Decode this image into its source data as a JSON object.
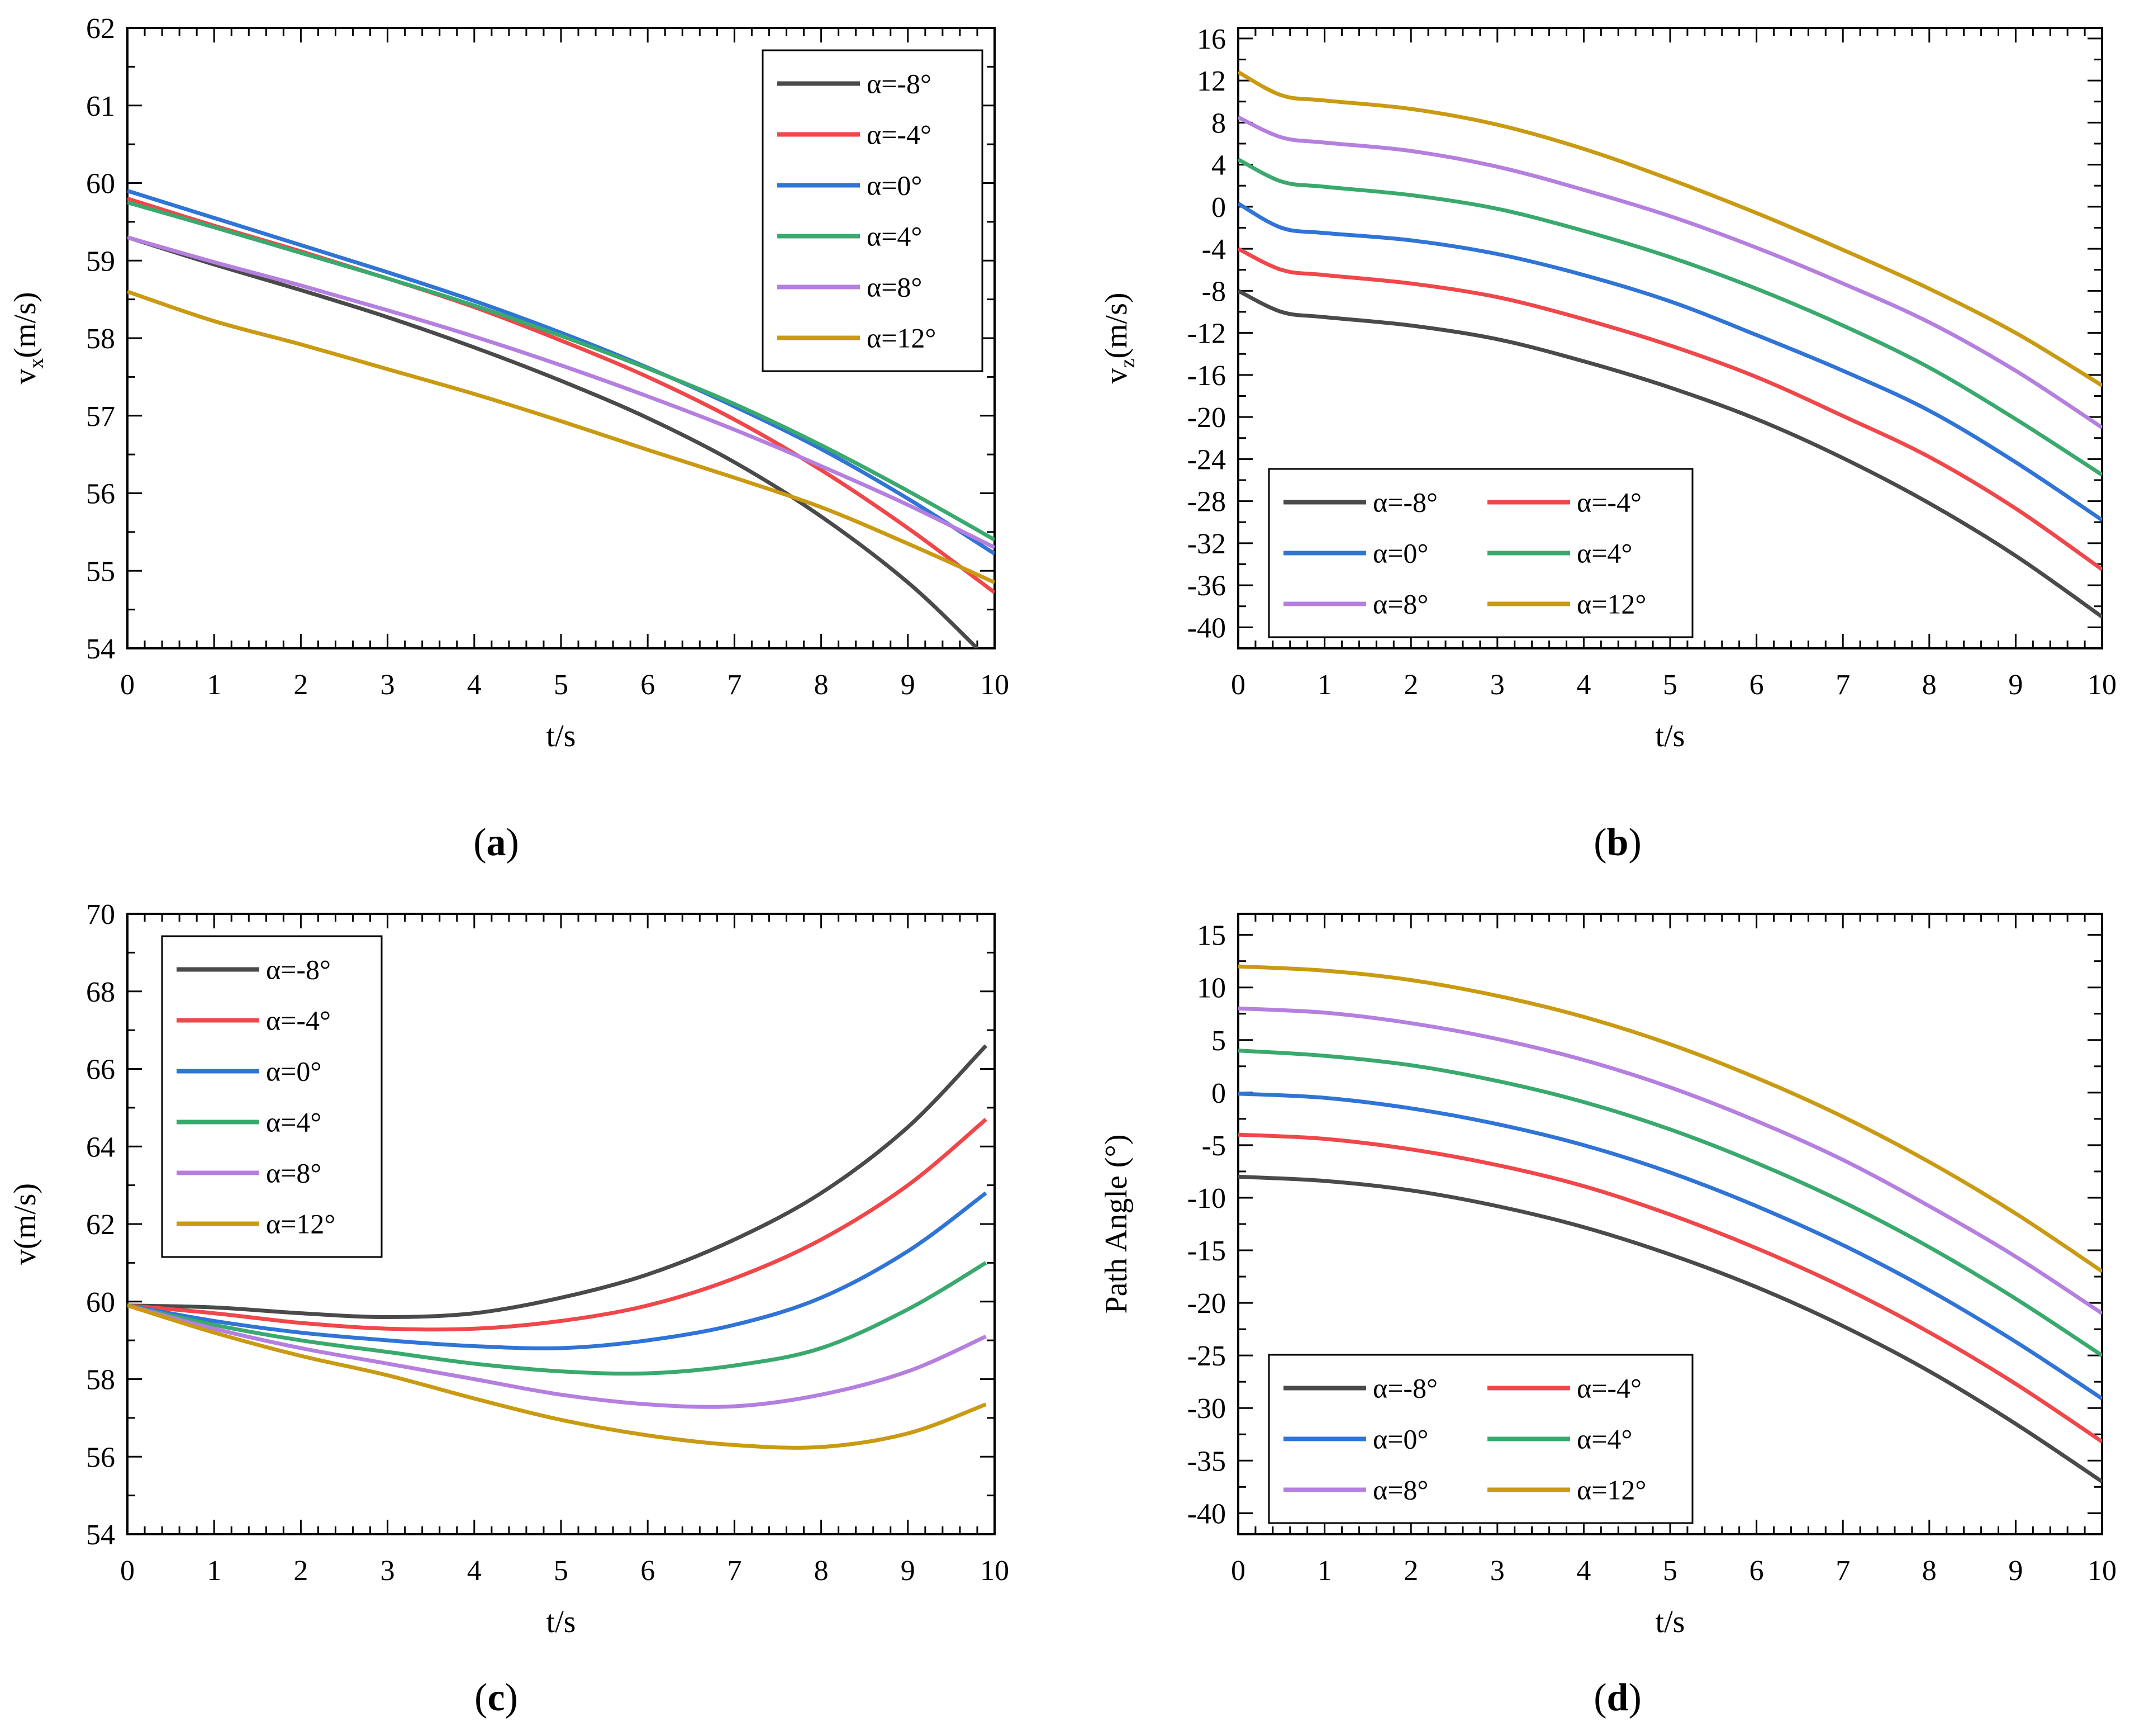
{
  "colors": {
    "a_m8": "#4a4a4a",
    "a_m4": "#f0474a",
    "a_0": "#2f74d6",
    "a_4": "#3aa96e",
    "a_8": "#b57fe0",
    "a_12": "#c99a12"
  },
  "chart_data": [
    {
      "type": "line",
      "caption": "a",
      "xlabel": "t/s",
      "ylabel_main": "v",
      "ylabel_sub": "x",
      "ylabel_rest": "(m/s)",
      "xlim": [
        0,
        10
      ],
      "ylim": [
        54,
        62
      ],
      "xticks": [
        0,
        1,
        2,
        3,
        4,
        5,
        6,
        7,
        8,
        9,
        10
      ],
      "yticks": [
        54,
        55,
        56,
        57,
        58,
        59,
        60,
        61,
        62
      ],
      "legend": {
        "placement": "top-right",
        "columns": 1
      },
      "series": [
        {
          "name": "α=-8°",
          "color": "a_m8",
          "x": [
            0,
            1,
            2,
            3,
            4,
            5,
            6,
            7,
            8,
            9,
            9.8
          ],
          "y": [
            59.3,
            58.95,
            58.62,
            58.27,
            57.88,
            57.45,
            56.97,
            56.4,
            55.7,
            54.85,
            54.0
          ]
        },
        {
          "name": "α=-4°",
          "color": "a_m4",
          "x": [
            0,
            1,
            2,
            3,
            4,
            5,
            6,
            7,
            8,
            9,
            10
          ],
          "y": [
            59.8,
            59.45,
            59.12,
            58.77,
            58.4,
            57.97,
            57.5,
            56.95,
            56.3,
            55.55,
            54.72
          ]
        },
        {
          "name": "α=0°",
          "color": "a_0",
          "x": [
            0,
            1,
            2,
            3,
            4,
            5,
            6,
            7,
            8,
            9,
            10
          ],
          "y": [
            59.9,
            59.55,
            59.2,
            58.85,
            58.48,
            58.07,
            57.62,
            57.12,
            56.57,
            55.93,
            55.22
          ]
        },
        {
          "name": "α=4°",
          "color": "a_4",
          "x": [
            0,
            1,
            2,
            3,
            4,
            5,
            6,
            7,
            8,
            9,
            10
          ],
          "y": [
            59.75,
            59.43,
            59.1,
            58.77,
            58.42,
            58.03,
            57.61,
            57.15,
            56.62,
            56.03,
            55.4
          ]
        },
        {
          "name": "α=8°",
          "color": "a_8",
          "x": [
            0,
            1,
            2,
            3,
            4,
            5,
            6,
            7,
            8,
            9,
            10
          ],
          "y": [
            59.3,
            58.98,
            58.68,
            58.36,
            58.02,
            57.65,
            57.25,
            56.82,
            56.35,
            55.85,
            55.3
          ]
        },
        {
          "name": "α=12°",
          "color": "a_12",
          "x": [
            0,
            1,
            2,
            3,
            4,
            5,
            6,
            7,
            8,
            9,
            10
          ],
          "y": [
            58.6,
            58.22,
            57.92,
            57.6,
            57.28,
            56.93,
            56.56,
            56.2,
            55.82,
            55.35,
            54.85
          ]
        }
      ]
    },
    {
      "type": "line",
      "caption": "b",
      "xlabel": "t/s",
      "ylabel_main": "v",
      "ylabel_sub": "z",
      "ylabel_rest": "(m/s)",
      "xlim": [
        0,
        10
      ],
      "ylim": [
        -42,
        17
      ],
      "xticks": [
        0,
        1,
        2,
        3,
        4,
        5,
        6,
        7,
        8,
        9,
        10
      ],
      "yticks": [
        -40,
        -36,
        -32,
        -28,
        -24,
        -20,
        -16,
        -12,
        -8,
        -4,
        0,
        4,
        8,
        12,
        16
      ],
      "legend": {
        "placement": "bottom-left",
        "columns": 2
      },
      "series": [
        {
          "name": "α=-8°",
          "color": "a_m8",
          "x": [
            0,
            0.5,
            1,
            2,
            3,
            4,
            5,
            6,
            7,
            8,
            9,
            10
          ],
          "y": [
            -8,
            -10,
            -10.5,
            -11.3,
            -12.6,
            -14.7,
            -17.2,
            -20.2,
            -23.9,
            -28.2,
            -33.2,
            -39
          ]
        },
        {
          "name": "α=-4°",
          "color": "a_m4",
          "x": [
            0,
            0.5,
            1,
            2,
            3,
            4,
            5,
            6,
            7,
            8,
            9,
            10
          ],
          "y": [
            -4,
            -6,
            -6.5,
            -7.3,
            -8.6,
            -10.7,
            -13.2,
            -16.2,
            -19.9,
            -23.8,
            -28.7,
            -34.5
          ]
        },
        {
          "name": "α=0°",
          "color": "a_0",
          "x": [
            0,
            0.5,
            1,
            2,
            3,
            4,
            5,
            6,
            7,
            8,
            9,
            10
          ],
          "y": [
            0.3,
            -2,
            -2.5,
            -3.2,
            -4.5,
            -6.5,
            -9,
            -12.2,
            -15.6,
            -19.4,
            -24.3,
            -29.8
          ]
        },
        {
          "name": "α=4°",
          "color": "a_4",
          "x": [
            0,
            0.5,
            1,
            2,
            3,
            4,
            5,
            6,
            7,
            8,
            9,
            10
          ],
          "y": [
            4.5,
            2.4,
            1.9,
            1.1,
            -0.2,
            -2.3,
            -4.8,
            -7.8,
            -11.3,
            -15.3,
            -20.2,
            -25.5
          ]
        },
        {
          "name": "α=8°",
          "color": "a_8",
          "x": [
            0,
            0.5,
            1,
            2,
            3,
            4,
            5,
            6,
            7,
            8,
            9,
            10
          ],
          "y": [
            8.5,
            6.6,
            6.1,
            5.3,
            3.8,
            1.6,
            -0.9,
            -3.9,
            -7.3,
            -11,
            -15.6,
            -21
          ]
        },
        {
          "name": "α=12°",
          "color": "a_12",
          "x": [
            0,
            0.5,
            1,
            2,
            3,
            4,
            5,
            6,
            7,
            8,
            9,
            10
          ],
          "y": [
            12.8,
            10.6,
            10.1,
            9.3,
            7.8,
            5.5,
            2.6,
            -0.6,
            -4.1,
            -7.8,
            -12,
            -17
          ]
        }
      ]
    },
    {
      "type": "line",
      "caption": "c",
      "xlabel": "t/s",
      "ylabel_main": "v(m/s)",
      "ylabel_sub": "",
      "ylabel_rest": "",
      "xlim": [
        0,
        10
      ],
      "ylim": [
        54,
        70
      ],
      "xticks": [
        0,
        1,
        2,
        3,
        4,
        5,
        6,
        7,
        8,
        9,
        10
      ],
      "yticks": [
        54,
        56,
        58,
        60,
        62,
        64,
        66,
        68,
        70
      ],
      "legend": {
        "placement": "top-left",
        "columns": 1
      },
      "series": [
        {
          "name": "α=-8°",
          "color": "a_m8",
          "x": [
            0,
            1,
            2,
            3,
            4,
            5,
            6,
            7,
            8,
            9,
            9.9
          ],
          "y": [
            59.9,
            59.85,
            59.7,
            59.6,
            59.7,
            60.1,
            60.7,
            61.6,
            62.8,
            64.5,
            66.6
          ]
        },
        {
          "name": "α=-4°",
          "color": "a_m4",
          "x": [
            0,
            1,
            2,
            3,
            4,
            5,
            6,
            7,
            8,
            9,
            9.9
          ],
          "y": [
            59.9,
            59.7,
            59.45,
            59.3,
            59.3,
            59.5,
            59.9,
            60.6,
            61.6,
            63,
            64.7
          ]
        },
        {
          "name": "α=0°",
          "color": "a_0",
          "x": [
            0,
            1,
            2,
            3,
            4,
            5,
            6,
            7,
            8,
            9,
            9.9
          ],
          "y": [
            59.9,
            59.5,
            59.2,
            59,
            58.85,
            58.8,
            59,
            59.4,
            60.1,
            61.3,
            62.8
          ]
        },
        {
          "name": "α=4°",
          "color": "a_4",
          "x": [
            0,
            1,
            2,
            3,
            4,
            5,
            6,
            7,
            8,
            9,
            9.9
          ],
          "y": [
            59.9,
            59.4,
            59,
            58.7,
            58.4,
            58.2,
            58.15,
            58.35,
            58.8,
            59.8,
            61
          ]
        },
        {
          "name": "α=8°",
          "color": "a_8",
          "x": [
            0,
            1,
            2,
            3,
            4,
            5,
            6,
            7,
            8,
            9,
            9.9
          ],
          "y": [
            59.9,
            59.3,
            58.8,
            58.4,
            58,
            57.6,
            57.35,
            57.3,
            57.6,
            58.2,
            59.1
          ]
        },
        {
          "name": "α=12°",
          "color": "a_12",
          "x": [
            0,
            1,
            2,
            3,
            4,
            5,
            6,
            7,
            8,
            9,
            9.9
          ],
          "y": [
            59.9,
            59.2,
            58.6,
            58.1,
            57.5,
            56.95,
            56.55,
            56.3,
            56.25,
            56.6,
            57.35
          ]
        }
      ]
    },
    {
      "type": "line",
      "caption": "d",
      "xlabel": "t/s",
      "ylabel_main": "Path Angle (°)",
      "ylabel_sub": "",
      "ylabel_rest": "",
      "xlim": [
        0,
        10
      ],
      "ylim": [
        -42,
        17
      ],
      "xticks": [
        0,
        1,
        2,
        3,
        4,
        5,
        6,
        7,
        8,
        9,
        10
      ],
      "yticks": [
        -40,
        -35,
        -30,
        -25,
        -20,
        -15,
        -10,
        -5,
        0,
        5,
        10,
        15
      ],
      "legend": {
        "placement": "bottom-left",
        "columns": 2
      },
      "series": [
        {
          "name": "α=-8°",
          "color": "a_m8",
          "x": [
            0,
            1,
            2,
            3,
            4,
            5,
            6,
            7,
            8,
            9,
            10
          ],
          "y": [
            -8,
            -8.4,
            -9.3,
            -10.8,
            -12.8,
            -15.4,
            -18.5,
            -22.2,
            -26.5,
            -31.5,
            -37
          ]
        },
        {
          "name": "α=-4°",
          "color": "a_m4",
          "x": [
            0,
            1,
            2,
            3,
            4,
            5,
            6,
            7,
            8,
            9,
            10
          ],
          "y": [
            -4,
            -4.4,
            -5.4,
            -6.9,
            -8.9,
            -11.6,
            -14.8,
            -18.5,
            -22.8,
            -27.7,
            -33.2
          ]
        },
        {
          "name": "α=0°",
          "color": "a_0",
          "x": [
            0,
            1,
            2,
            3,
            4,
            5,
            6,
            7,
            8,
            9,
            10
          ],
          "y": [
            -0.1,
            -0.5,
            -1.5,
            -3,
            -5,
            -7.6,
            -10.8,
            -14.5,
            -18.8,
            -23.7,
            -29.1
          ]
        },
        {
          "name": "α=4°",
          "color": "a_4",
          "x": [
            0,
            1,
            2,
            3,
            4,
            5,
            6,
            7,
            8,
            9,
            10
          ],
          "y": [
            4,
            3.5,
            2.6,
            1.1,
            -0.9,
            -3.5,
            -6.7,
            -10.4,
            -14.7,
            -19.6,
            -25
          ]
        },
        {
          "name": "α=8°",
          "color": "a_8",
          "x": [
            0,
            1,
            2,
            3,
            4,
            5,
            6,
            7,
            8,
            9,
            10
          ],
          "y": [
            8,
            7.6,
            6.6,
            5.1,
            3.1,
            0.5,
            -2.7,
            -6.4,
            -10.8,
            -15.6,
            -21
          ]
        },
        {
          "name": "α=12°",
          "color": "a_12",
          "x": [
            0,
            1,
            2,
            3,
            4,
            5,
            6,
            7,
            8,
            9,
            10
          ],
          "y": [
            12,
            11.6,
            10.7,
            9.2,
            7.2,
            4.6,
            1.4,
            -2.3,
            -6.6,
            -11.5,
            -17
          ]
        }
      ]
    }
  ]
}
